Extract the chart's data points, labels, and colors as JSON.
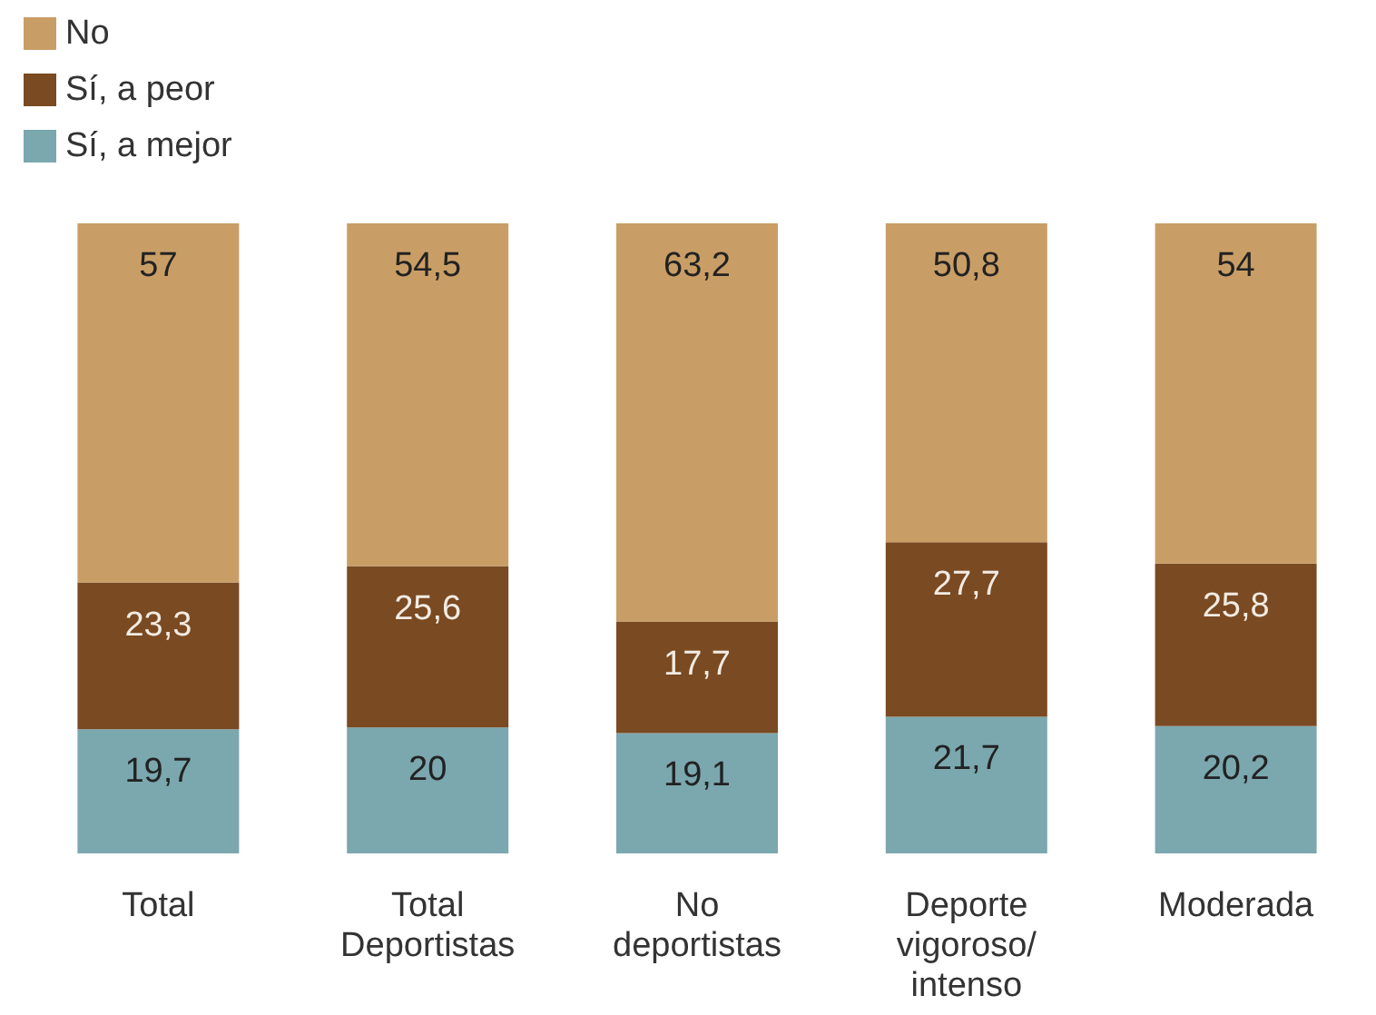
{
  "chart_data": {
    "type": "bar",
    "stacked": true,
    "categories": [
      "Total",
      "Total\nDeportistas",
      "No\ndeportistas",
      "Deporte\nvigoroso/\nintenso",
      "Moderada"
    ],
    "series": [
      {
        "name": "Sí, a mejor",
        "color": "#7ba7ae",
        "values": [
          19.7,
          20,
          19.1,
          21.7,
          20.2
        ],
        "value_labels": [
          "19,7",
          "20",
          "19,1",
          "21,7",
          "20,2"
        ]
      },
      {
        "name": "Sí, a peor",
        "color": "#7a4a22",
        "values": [
          23.3,
          25.6,
          17.7,
          27.7,
          25.8
        ],
        "value_labels": [
          "23,3",
          "25,6",
          "17,7",
          "27,7",
          "25,8"
        ]
      },
      {
        "name": "No",
        "color": "#c99e66",
        "values": [
          57,
          54.5,
          63.2,
          50.8,
          54
        ],
        "value_labels": [
          "57",
          "54,5",
          "63,2",
          "50,8",
          "54"
        ]
      }
    ],
    "ylim": [
      0,
      100
    ],
    "tick_labels": "x",
    "legend": "top left"
  }
}
